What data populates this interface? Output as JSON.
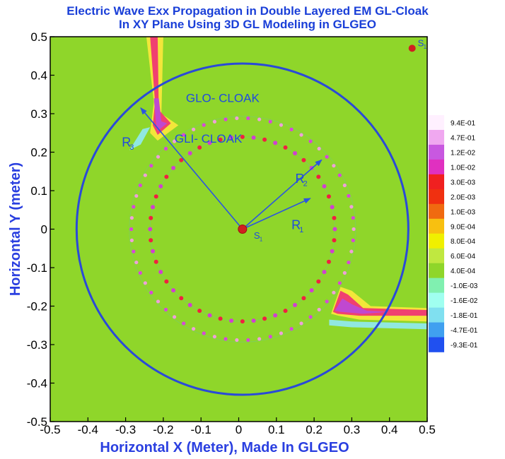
{
  "chart_data": {
    "type": "heatmap",
    "title_lines": [
      "Electric Wave Exx Propagation in Double Layered EM GL-Cloak",
      "In XY Plane Using 3D GL Modeling in GLGEO"
    ],
    "xlabel": "Horizontal X (Meter), Made In GLGEO",
    "ylabel": "Horizontal Y (meter)",
    "xlim": [
      -0.5,
      0.5
    ],
    "ylim": [
      -0.5,
      0.5
    ],
    "xticks": [
      "-0.5",
      "-0.4",
      "-0.3",
      "-0.2",
      "-0.1",
      "0",
      "0.1",
      "0.2",
      "0.3",
      "0.4",
      "0.5"
    ],
    "yticks": [
      "0.5",
      "0.4",
      "0.3",
      "0.2",
      "0.1",
      "0",
      "-0.1",
      "-0.2",
      "-0.3",
      "-0.4",
      "-0.5"
    ],
    "background_color": "#8fd62a",
    "legend": {
      "labels": [
        "9.4E-01",
        "4.7E-01",
        "1.2E-02",
        "1.0E-02",
        "3.0E-03",
        "2.0E-03",
        "1.0E-03",
        "9.0E-04",
        "8.0E-04",
        "6.0E-04",
        "4.0E-04",
        "-1.0E-03",
        "-1.6E-02",
        "-1.8E-01",
        "-4.7E-01",
        "-9.3E-01"
      ],
      "colors": [
        "#fff0ff",
        "#f0a8f0",
        "#c858e0",
        "#e030c0",
        "#f02020",
        "#f03010",
        "#f06a10",
        "#f8c010",
        "#f0f000",
        "#c0e840",
        "#8fd62a",
        "#80f0b0",
        "#a0fff0",
        "#80e0f0",
        "#40a0f0",
        "#2050f0"
      ]
    },
    "annotations": {
      "outer_cloak": "GLO- CLOAK",
      "inner_cloak": "GLI- CLOAK",
      "r1": "R",
      "r1_sub": "1",
      "r2": "R",
      "r2_sub": "2",
      "r3": "R",
      "r3_sub": "3",
      "source": "S",
      "source_sub": "1",
      "corner_source": "S",
      "corner_source_sub": "1"
    },
    "outer_circle_radius": 0.44,
    "source_point": [
      0.01,
      0.0
    ],
    "corner_point": [
      0.46,
      0.47
    ]
  }
}
